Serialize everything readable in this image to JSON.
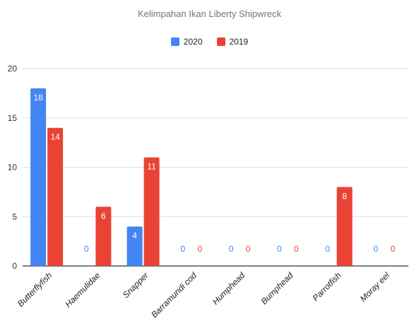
{
  "chart_data": {
    "type": "bar",
    "title": "Kelimpahan Ikan Liberty Shipwreck",
    "xlabel": "",
    "ylabel": "",
    "ylim": [
      0,
      20
    ],
    "yticks": [
      0,
      5,
      10,
      15,
      20
    ],
    "grid": true,
    "legend_position": "top-center",
    "categories": [
      "Butterflyfish",
      "Haemulidae",
      "Snapper",
      "Barramundi cod",
      "Humphead",
      "Bumphead",
      "Parrotfish",
      "Moray eel"
    ],
    "series": [
      {
        "name": "2020",
        "color": "#4285F4",
        "values": [
          18,
          0,
          4,
          0,
          0,
          0,
          0,
          0
        ]
      },
      {
        "name": "2019",
        "color": "#EA4335",
        "values": [
          14,
          6,
          11,
          0,
          0,
          0,
          8,
          0
        ]
      }
    ]
  }
}
